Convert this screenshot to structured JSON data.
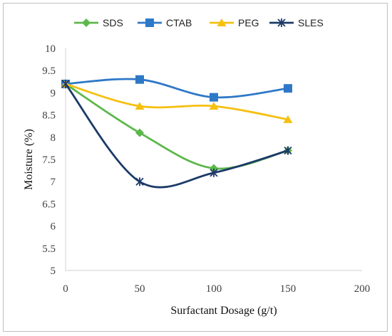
{
  "chart_data": {
    "type": "line",
    "title": "",
    "xlabel": "Surfactant Dosage (g/t)",
    "ylabel": "Moisture (%)",
    "xlim": [
      0,
      200
    ],
    "ylim": [
      5,
      10
    ],
    "x_ticks": [
      "0",
      "50",
      "100",
      "150",
      "200"
    ],
    "y_ticks": [
      "5",
      "5.5",
      "6",
      "6.5",
      "7",
      "7.5",
      "8",
      "8.5",
      "9",
      "9.5",
      "10"
    ],
    "grid": false,
    "smooth": true,
    "legend_position": "top",
    "x": [
      0,
      50,
      100,
      150
    ],
    "series": [
      {
        "name": "SDS",
        "values": [
          9.2,
          8.1,
          7.3,
          7.7
        ],
        "color": "#5cb84a",
        "marker": "diamond"
      },
      {
        "name": "CTAB",
        "values": [
          9.2,
          9.3,
          8.9,
          9.1
        ],
        "color": "#2e78c8",
        "marker": "square"
      },
      {
        "name": "PEG",
        "values": [
          9.2,
          8.7,
          8.7,
          8.4
        ],
        "color": "#f5c010",
        "marker": "triangle"
      },
      {
        "name": "SLES",
        "values": [
          9.2,
          7.0,
          7.2,
          7.7
        ],
        "color": "#1c3a68",
        "marker": "star"
      }
    ]
  }
}
